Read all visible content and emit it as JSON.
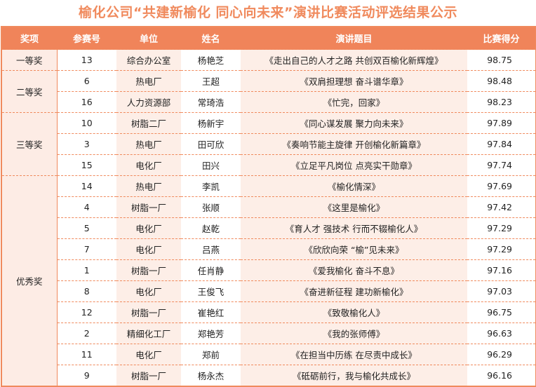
{
  "title": "榆化公司“共建新榆化 同心向未来”演讲比赛活动评选结果公示",
  "headers": [
    "奖项",
    "参赛号",
    "单位",
    "姓名",
    "演讲题目",
    "比赛得分"
  ],
  "colors": {
    "accent": "#F0845A",
    "cell_tint": "#FDEEE7"
  },
  "groups": [
    {
      "award": "一等奖",
      "rows": [
        [
          "13",
          "综合办公室",
          "杨艳芝",
          "《走出自己的人才之路  共创双百榆化新辉煌》",
          "98.75"
        ]
      ]
    },
    {
      "award": "二等奖",
      "rows": [
        [
          "6",
          "热电厂",
          "王超",
          "《双肩担理想 奋斗谱华章》",
          "98.48"
        ],
        [
          "16",
          "人力资源部",
          "常琦浩",
          "《忙完，回家》",
          "98.23"
        ]
      ]
    },
    {
      "award": "三等奖",
      "rows": [
        [
          "10",
          "树脂二厂",
          "杨新宇",
          "《同心谋发展  聚力向未来》",
          "97.89"
        ],
        [
          "3",
          "热电厂",
          "田可欣",
          "《奏响节能主旋律  开创榆化新篇章》",
          "97.84"
        ],
        [
          "15",
          "电化厂",
          "田兴",
          "《立足平凡岗位  点亮实干勋章》",
          "97.74"
        ]
      ]
    },
    {
      "award": "优秀奖",
      "rows": [
        [
          "14",
          "热电厂",
          "李凯",
          "《榆化情深》",
          "97.69"
        ],
        [
          "4",
          "树脂一厂",
          "张顺",
          "《这里是榆化》",
          "97.42"
        ],
        [
          "5",
          "电化厂",
          "赵乾",
          "《育人才 强技术 行而不辍榆化人》",
          "97.29"
        ],
        [
          "7",
          "电化厂",
          "吕燕",
          "《欣欣向荣  “榆”见未来》",
          "97.29"
        ],
        [
          "1",
          "树脂一厂",
          "任肖静",
          "《爱我榆化  奋斗不息》",
          "97.16"
        ],
        [
          "8",
          "电化厂",
          "王俊飞",
          "《奋进新征程  建功新榆化》",
          "97.03"
        ],
        [
          "12",
          "树脂一厂",
          "崔艳红",
          "《致敬榆化人》",
          "96.75"
        ],
        [
          "2",
          "精细化工厂",
          "郑艳芳",
          "《我的张师傅》",
          "96.63"
        ],
        [
          "11",
          "电化厂",
          "郑前",
          "《在担当中历练  在尽责中成长》",
          "96.29"
        ],
        [
          "9",
          "树脂一厂",
          "杨永杰",
          "《砥砺前行，我与榆化共成长》",
          "96.16"
        ]
      ]
    }
  ]
}
